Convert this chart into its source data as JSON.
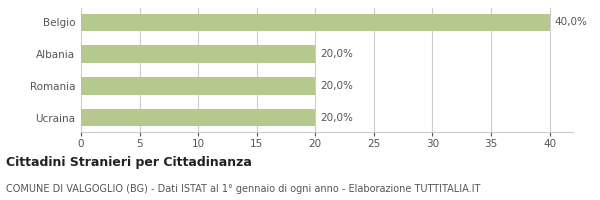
{
  "categories": [
    "Ucraina",
    "Romania",
    "Albania",
    "Belgio"
  ],
  "values": [
    20.0,
    20.0,
    20.0,
    40.0
  ],
  "bar_color": "#b5c98e",
  "bar_labels": [
    "20,0%",
    "20,0%",
    "20,0%",
    "40,0%"
  ],
  "xlim": [
    0,
    42
  ],
  "xticks": [
    0,
    5,
    10,
    15,
    20,
    25,
    30,
    35,
    40
  ],
  "title_bold": "Cittadini Stranieri per Cittadinanza",
  "subtitle": "COMUNE DI VALGOGLIO (BG) - Dati ISTAT al 1° gennaio di ogni anno - Elaborazione TUTTITALIA.IT",
  "background_color": "#ffffff",
  "grid_color": "#cccccc",
  "label_fontsize": 7.5,
  "tick_fontsize": 7.5,
  "title_fontsize": 9,
  "subtitle_fontsize": 7,
  "bar_height": 0.55
}
